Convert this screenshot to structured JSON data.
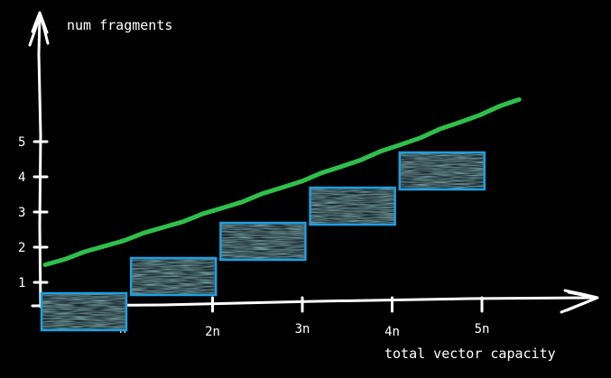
{
  "y_axis": {
    "label": "num fragments",
    "ticks": [
      "1",
      "2",
      "3",
      "4",
      "5"
    ]
  },
  "x_axis": {
    "label": "total vector capacity",
    "ticks": [
      "n",
      "2n",
      "3n",
      "4n",
      "5n"
    ]
  },
  "fragments": [
    {
      "capacity_start": 0,
      "capacity_end": 1,
      "count": 1
    },
    {
      "capacity_start": 1,
      "capacity_end": 2,
      "count": 2
    },
    {
      "capacity_start": 2,
      "capacity_end": 3,
      "count": 3
    },
    {
      "capacity_start": 3,
      "capacity_end": 4,
      "count": 4
    },
    {
      "capacity_start": 4,
      "capacity_end": 5,
      "count": 5
    }
  ],
  "trend_line": {
    "from": [
      0,
      1.5
    ],
    "to": [
      5.4,
      6.2
    ]
  },
  "colors": {
    "background": "#000000",
    "axes": "#ffffff",
    "fragment_border": "#1f9fe0",
    "fragment_fill": "#5f8f93",
    "trend_line": "#2fbf4a"
  }
}
